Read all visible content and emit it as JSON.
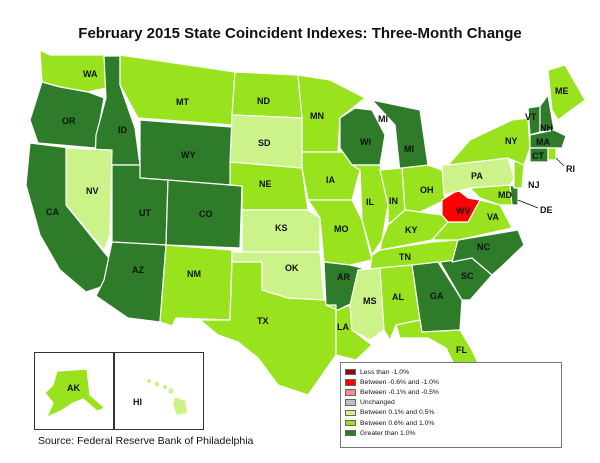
{
  "title": "February 2015 State Coincident Indexes: Three-Month Change",
  "source": "Source: Federal Reserve Bank of Philadelphia",
  "colors": {
    "lt_neg1": "#990000",
    "neg06_neg1": "#ff0000",
    "neg01_neg05": "#ff8c8c",
    "unchanged": "#c0c0c0",
    "p01_05": "#ccf28a",
    "p06_10": "#99e31e",
    "gt1": "#2e7c2a"
  },
  "legend": [
    {
      "label": "Less than -1.0%",
      "key": "lt_neg1"
    },
    {
      "label": "Between -0.6% and -1.0%",
      "key": "neg06_neg1"
    },
    {
      "label": "Between -0.1% and -0.5%",
      "key": "neg01_neg05"
    },
    {
      "label": "Unchanged",
      "key": "unchanged"
    },
    {
      "label": "Between 0.1% and 0.5%",
      "key": "p01_05"
    },
    {
      "label": "Between 0.6% and 1.0%",
      "key": "p06_10"
    },
    {
      "label": "Greater than 1.0%",
      "key": "gt1"
    }
  ],
  "states": {
    "WA": "p06_10",
    "OR": "gt1",
    "CA": "gt1",
    "ID": "gt1",
    "NV": "p01_05",
    "MT": "p06_10",
    "WY": "gt1",
    "UT": "gt1",
    "CO": "gt1",
    "AZ": "gt1",
    "NM": "p06_10",
    "ND": "p06_10",
    "SD": "p01_05",
    "NE": "p06_10",
    "KS": "p01_05",
    "OK": "p01_05",
    "TX": "p06_10",
    "MN": "p06_10",
    "IA": "p06_10",
    "MO": "p06_10",
    "AR": "gt1",
    "LA": "p06_10",
    "WI": "gt1",
    "IL": "p06_10",
    "MS": "p01_05",
    "MI": "gt1",
    "IN": "p06_10",
    "OH": "p06_10",
    "KY": "p06_10",
    "TN": "p06_10",
    "AL": "p06_10",
    "GA": "gt1",
    "FL": "p06_10",
    "SC": "gt1",
    "NC": "gt1",
    "VA": "p06_10",
    "WV": "neg06_neg1",
    "PA": "p01_05",
    "NY": "p06_10",
    "VT": "gt1",
    "NH": "gt1",
    "ME": "p06_10",
    "MA": "gt1",
    "RI": "p06_10",
    "CT": "gt1",
    "NJ": "p06_10",
    "DE": "gt1",
    "MD": "p06_10",
    "AK": "p06_10",
    "HI": "p01_05"
  }
}
